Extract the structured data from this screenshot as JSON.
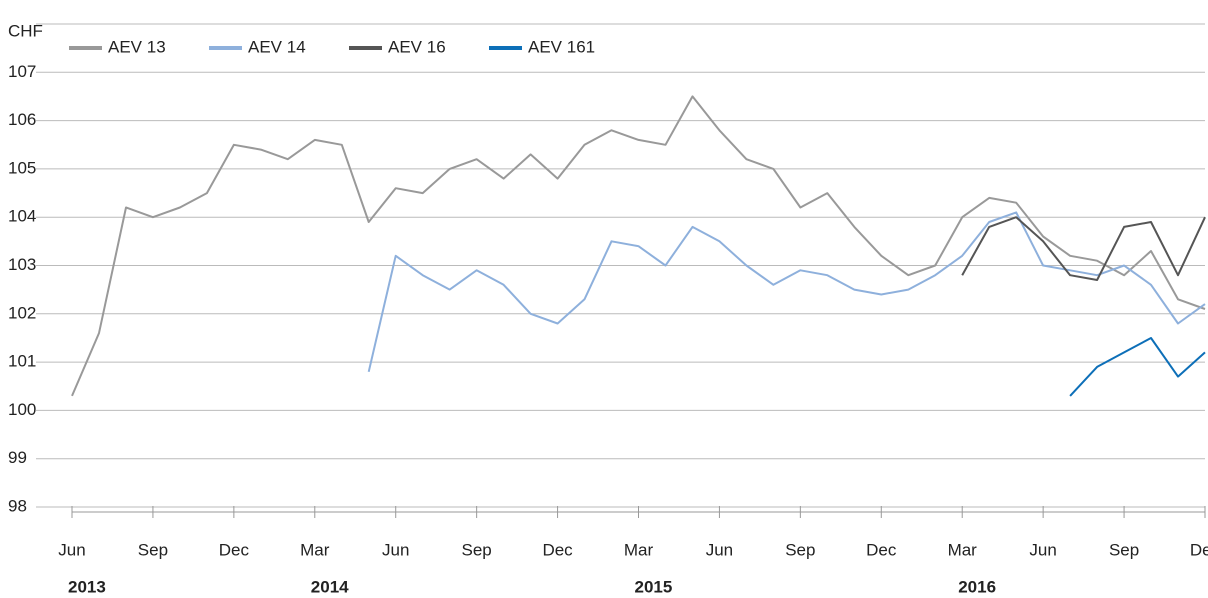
{
  "chart_data": {
    "type": "line",
    "y_unit": "CHF",
    "x": [
      "2013-06",
      "2013-07",
      "2013-08",
      "2013-09",
      "2013-10",
      "2013-11",
      "2013-12",
      "2014-01",
      "2014-02",
      "2014-03",
      "2014-04",
      "2014-05",
      "2014-06",
      "2014-07",
      "2014-08",
      "2014-09",
      "2014-10",
      "2014-11",
      "2014-12",
      "2015-01",
      "2015-02",
      "2015-03",
      "2015-04",
      "2015-05",
      "2015-06",
      "2015-07",
      "2015-08",
      "2015-09",
      "2015-10",
      "2015-11",
      "2015-12",
      "2016-01",
      "2016-02",
      "2016-03",
      "2016-04",
      "2016-05",
      "2016-06",
      "2016-07",
      "2016-08",
      "2016-09",
      "2016-10",
      "2016-11",
      "2016-12"
    ],
    "series": [
      {
        "name": "AEV 13",
        "color": "#999999",
        "values": [
          100.3,
          101.6,
          104.2,
          104.0,
          104.2,
          104.5,
          105.5,
          105.4,
          105.2,
          105.6,
          105.5,
          103.9,
          104.6,
          104.5,
          105.0,
          105.2,
          104.8,
          105.3,
          104.8,
          105.5,
          105.8,
          105.6,
          105.5,
          106.5,
          105.8,
          105.2,
          105.0,
          104.2,
          104.5,
          103.8,
          103.2,
          102.8,
          103.0,
          104.0,
          104.4,
          104.3,
          103.6,
          103.2,
          103.1,
          102.8,
          103.3,
          102.3,
          102.1
        ]
      },
      {
        "name": "AEV 14",
        "color": "#8eb0dc",
        "values": [
          null,
          null,
          null,
          null,
          null,
          null,
          null,
          null,
          null,
          null,
          null,
          100.8,
          103.2,
          102.8,
          102.5,
          102.9,
          102.6,
          102.0,
          101.8,
          102.3,
          103.5,
          103.4,
          103.0,
          103.8,
          103.5,
          103.0,
          102.6,
          102.9,
          102.8,
          102.5,
          102.4,
          102.5,
          102.8,
          103.2,
          103.9,
          104.1,
          103.0,
          102.9,
          102.8,
          103.0,
          102.6,
          101.8,
          102.2
        ]
      },
      {
        "name": "AEV 16",
        "color": "#555555",
        "values": [
          null,
          null,
          null,
          null,
          null,
          null,
          null,
          null,
          null,
          null,
          null,
          null,
          null,
          null,
          null,
          null,
          null,
          null,
          null,
          null,
          null,
          null,
          null,
          null,
          null,
          null,
          null,
          null,
          null,
          null,
          null,
          null,
          null,
          102.8,
          103.8,
          104.0,
          103.5,
          102.8,
          102.7,
          103.8,
          103.9,
          102.8,
          104.0
        ]
      },
      {
        "name": "AEV 161",
        "color": "#0d6fb8",
        "values": [
          null,
          null,
          null,
          null,
          null,
          null,
          null,
          null,
          null,
          null,
          null,
          null,
          null,
          null,
          null,
          null,
          null,
          null,
          null,
          null,
          null,
          null,
          null,
          null,
          null,
          null,
          null,
          null,
          null,
          null,
          null,
          null,
          null,
          null,
          null,
          null,
          null,
          100.3,
          100.9,
          101.2,
          101.5,
          100.7,
          101.2
        ]
      }
    ],
    "xlim": [
      "2013-06",
      "2016-12"
    ],
    "xticks": [
      {
        "value": "2013-06",
        "label": "Jun"
      },
      {
        "value": "2013-09",
        "label": "Sep"
      },
      {
        "value": "2013-12",
        "label": "Dec"
      },
      {
        "value": "2014-03",
        "label": "Mar"
      },
      {
        "value": "2014-06",
        "label": "Jun"
      },
      {
        "value": "2014-09",
        "label": "Sep"
      },
      {
        "value": "2014-12",
        "label": "Dec"
      },
      {
        "value": "2015-03",
        "label": "Mar"
      },
      {
        "value": "2015-06",
        "label": "Jun"
      },
      {
        "value": "2015-09",
        "label": "Sep"
      },
      {
        "value": "2015-12",
        "label": "Dec"
      },
      {
        "value": "2016-03",
        "label": "Mar"
      },
      {
        "value": "2016-06",
        "label": "Jun"
      },
      {
        "value": "2016-09",
        "label": "Sep"
      },
      {
        "value": "2016-12",
        "label": "Dec"
      }
    ],
    "year_labels": [
      {
        "value": "2013-06",
        "label": "2013"
      },
      {
        "value": "2014-03",
        "label": "2014"
      },
      {
        "value": "2015-03",
        "label": "2015"
      },
      {
        "value": "2016-03",
        "label": "2016"
      }
    ],
    "ylim": [
      98,
      108
    ],
    "yticks": [
      98,
      99,
      100,
      101,
      102,
      103,
      104,
      105,
      106,
      107
    ],
    "grid": true,
    "legend": "top-left"
  }
}
